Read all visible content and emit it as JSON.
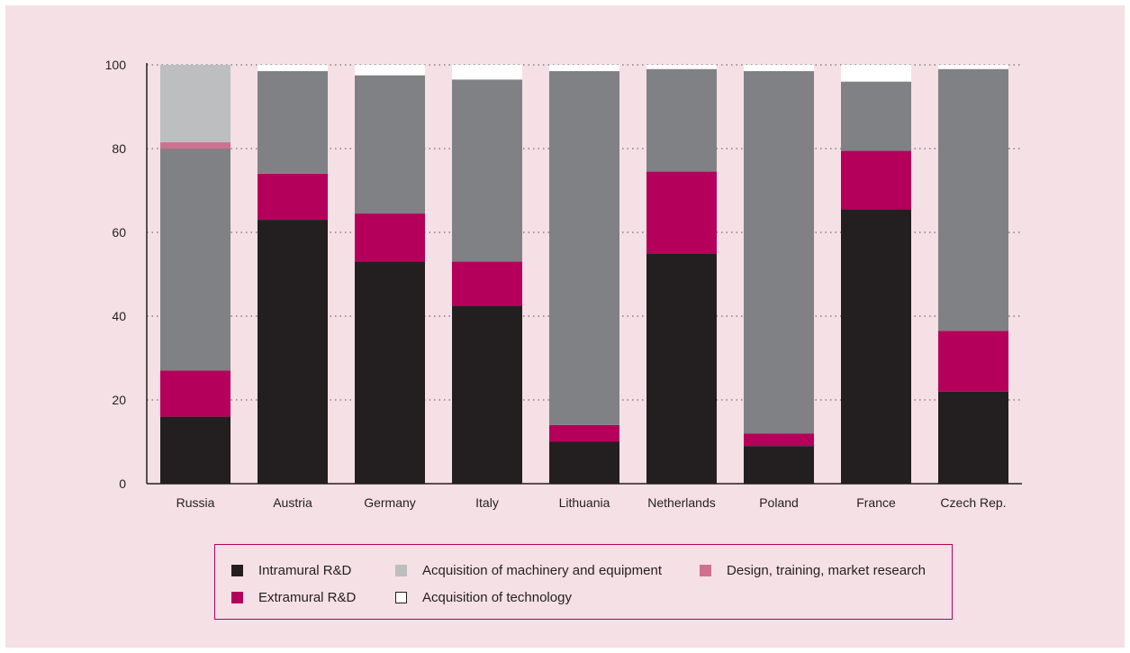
{
  "colors": {
    "background": "#f5e0e5",
    "intramural": "#231f20",
    "extramural": "#b5005b",
    "machinery": "#808184",
    "design": "#d07090",
    "technology": "#ffffff",
    "axis": "#231f20",
    "legend_border": "#b5005b"
  },
  "chart_data": {
    "type": "bar",
    "stacked": true,
    "categories": [
      "Russia",
      "Austria",
      "Germany",
      "Italy",
      "Lithuania",
      "Netherlands",
      "Poland",
      "France",
      "Czech Rep."
    ],
    "ylim": [
      0,
      100
    ],
    "yticks": [
      0,
      20,
      40,
      60,
      80,
      100
    ],
    "grid": "horizontal dotted",
    "legend_position": "bottom",
    "series": [
      {
        "name": "Intramural R&D",
        "color": "#231f20",
        "values": [
          16,
          63,
          53,
          42.5,
          10,
          55,
          9,
          65.5,
          22
        ]
      },
      {
        "name": "Extramural R&D",
        "color": "#b5005b",
        "values": [
          11,
          11,
          11.5,
          10.5,
          4,
          19.5,
          3,
          14,
          14.5
        ]
      },
      {
        "name": "Acquisition of machinery and equipment",
        "color": "#808184",
        "values": [
          53,
          24.5,
          33,
          43.5,
          84.5,
          24.5,
          86.5,
          16.5,
          62.5
        ]
      },
      {
        "name": "Design, training, market research",
        "color": "#d07090",
        "values": [
          1.5,
          0,
          0,
          0,
          0,
          0,
          0,
          0,
          0
        ]
      },
      {
        "name": "Acquisition of technology",
        "color": "#ffffff",
        "values": [
          0,
          1.5,
          2.5,
          3.5,
          1.5,
          1,
          1.5,
          4,
          1
        ]
      }
    ],
    "stack_top_segments": [
      {
        "category": "Russia",
        "color": "#bcbec0",
        "value": 18.5
      }
    ]
  },
  "legend": {
    "items": [
      {
        "label": "Intramural R&D",
        "color": "#231f20"
      },
      {
        "label": "Acquisition of machinery and equipment",
        "color": "#bcbec0"
      },
      {
        "label": "Design, training, market research",
        "color": "#d07090"
      },
      {
        "label": "Extramural R&D",
        "color": "#b5005b"
      },
      {
        "label": "Acquisition of technology",
        "color": "#ffffff"
      }
    ]
  }
}
